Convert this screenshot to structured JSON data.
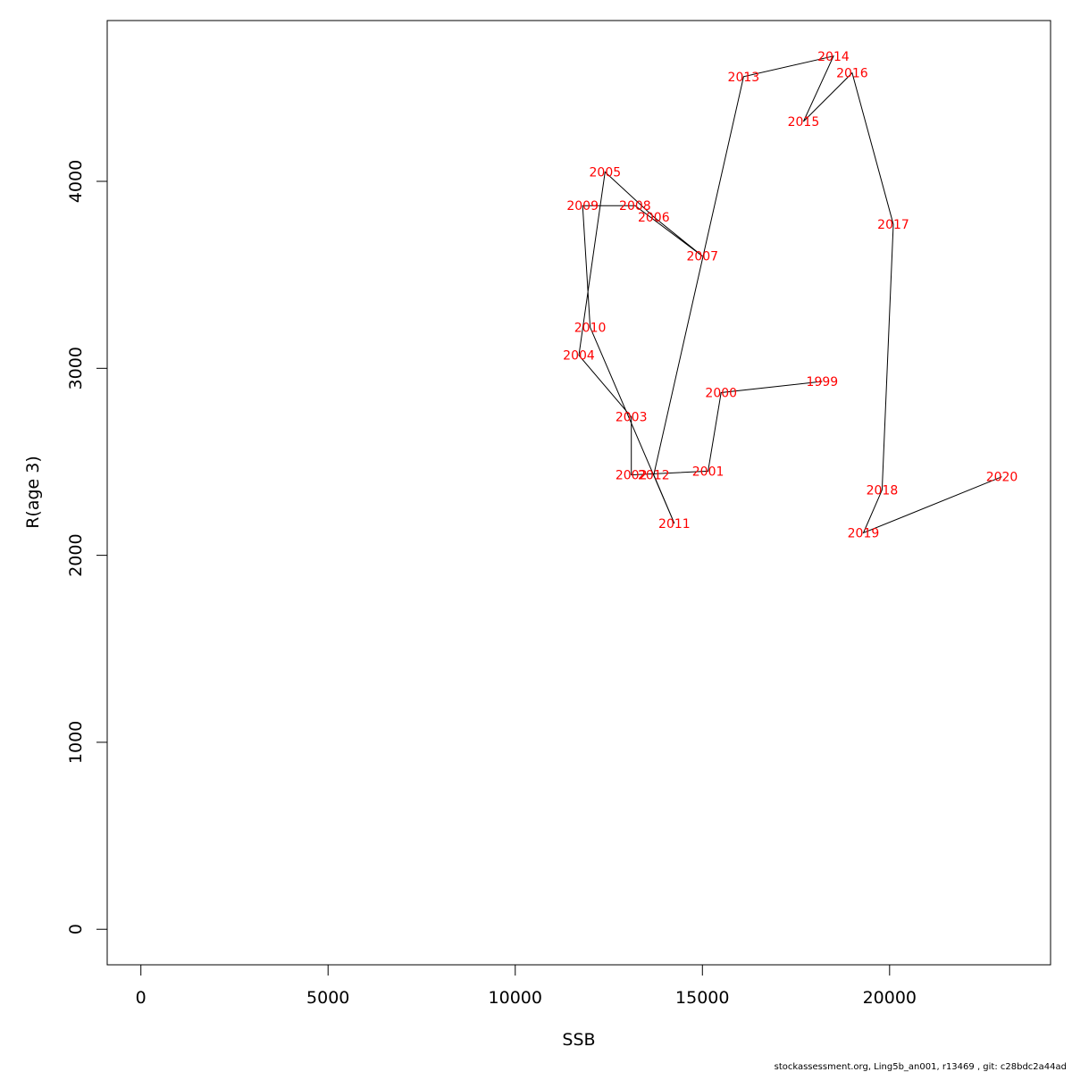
{
  "chart_data": {
    "type": "line",
    "xlabel": "SSB",
    "ylabel": "R(age 3)",
    "xlim": [
      -900,
      24300
    ],
    "ylim": [
      -190,
      4860
    ],
    "xticks": [
      0,
      5000,
      10000,
      15000,
      20000
    ],
    "yticks": [
      0,
      1000,
      2000,
      3000,
      4000
    ],
    "xtick_labels": [
      "0",
      "5000",
      "10000",
      "15000",
      "20000"
    ],
    "ytick_labels": [
      "0",
      "1000",
      "2000",
      "3000",
      "4000"
    ],
    "line_color": "#000000",
    "label_color": "#ff0000",
    "points": [
      {
        "year": "1999",
        "x": 18200,
        "y": 2930
      },
      {
        "year": "2000",
        "x": 15500,
        "y": 2870
      },
      {
        "year": "2001",
        "x": 15150,
        "y": 2450
      },
      {
        "year": "2002",
        "x": 13100,
        "y": 2430
      },
      {
        "year": "2003",
        "x": 13100,
        "y": 2740
      },
      {
        "year": "2004",
        "x": 11700,
        "y": 3070
      },
      {
        "year": "2005",
        "x": 12400,
        "y": 4050
      },
      {
        "year": "2006",
        "x": 13700,
        "y": 3810
      },
      {
        "year": "2007",
        "x": 15000,
        "y": 3600
      },
      {
        "year": "2008",
        "x": 13200,
        "y": 3870
      },
      {
        "year": "2009",
        "x": 11800,
        "y": 3870
      },
      {
        "year": "2010",
        "x": 12000,
        "y": 3220
      },
      {
        "year": "2011",
        "x": 14250,
        "y": 2170
      },
      {
        "year": "2012",
        "x": 13700,
        "y": 2430
      },
      {
        "year": "2013",
        "x": 16100,
        "y": 4560
      },
      {
        "year": "2014",
        "x": 18500,
        "y": 4670
      },
      {
        "year": "2015",
        "x": 17700,
        "y": 4320
      },
      {
        "year": "2016",
        "x": 19000,
        "y": 4580
      },
      {
        "year": "2017",
        "x": 20100,
        "y": 3770
      },
      {
        "year": "2018",
        "x": 19800,
        "y": 2350
      },
      {
        "year": "2019",
        "x": 19300,
        "y": 2120
      },
      {
        "year": "2020",
        "x": 23000,
        "y": 2420
      }
    ]
  },
  "footer": "stockassessment.org, Ling5b_an001, r13469 , git: c28bdc2a44ad"
}
